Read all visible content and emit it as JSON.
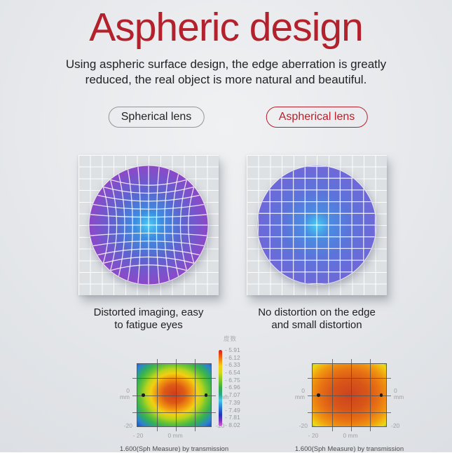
{
  "title": "Aspheric design",
  "subtitle_lines": [
    "Using aspheric surface design, the edge aberration is greatly",
    "reduced, the real object is more natural and beautiful."
  ],
  "badges": {
    "spherical": "Spherical lens",
    "aspherical": "Aspherical lens"
  },
  "lens_captions": {
    "spherical": [
      "Distorted imaging, easy",
      "to fatigue eyes"
    ],
    "aspherical": [
      "No distortion on the edge",
      "and small distortion"
    ]
  },
  "lenses": {
    "spherical": {
      "grid": "distorted pincushion grid",
      "center": "#49ccf5",
      "inner": "#3b8ee2",
      "mid": "#5a66d0",
      "edge": "#8d48c8"
    },
    "aspherical": {
      "grid": "regular undistorted grid",
      "center": "#44ccf2",
      "inner": "#4a8ce2",
      "mid": "#5b74da",
      "edge": "#6f68d8"
    }
  },
  "colors": {
    "accent_red": "#b3212d",
    "badge_border_gray": "#94969a",
    "text_dark": "#1f1f21",
    "axis_gray": "#9fa1a4",
    "background": "#e7e9ec"
  },
  "legend": {
    "title": "度数",
    "values": [
      "- 5.91",
      "- 6.12",
      "- 6.33",
      "- 6.54",
      "- 6.75",
      "- 6.96",
      "- 7.07",
      "- 7.39",
      "- 7.49",
      "- 7.81",
      "- 8.02"
    ],
    "bar_stops": [
      [
        "#d81b1a",
        0
      ],
      [
        "#ee6e10",
        10
      ],
      [
        "#f4cf10",
        21
      ],
      [
        "#d2da16",
        30
      ],
      [
        "#7cc62c",
        40
      ],
      [
        "#35ac48",
        50
      ],
      [
        "#2ba385",
        58
      ],
      [
        "#47c6e2",
        66
      ],
      [
        "#2b7fd8",
        75
      ],
      [
        "#2336b4",
        85
      ],
      [
        "#8032c0",
        93
      ],
      [
        "#da66d2",
        100
      ]
    ]
  },
  "chart_data": [
    {
      "type": "heatmap",
      "lens": "Spherical lens",
      "caption": "1.600(Sph Measure) by transmission",
      "x_range_mm": [
        -20,
        20
      ],
      "y_range_mm": [
        -20,
        20
      ],
      "value_range": [
        -5.91,
        -8.02
      ],
      "pattern": "radial power map: red center through orange, yellow, green rings to blue corners (strong edge power change)",
      "center_y": "48%",
      "color_stops": [
        [
          "#d23b1e",
          0
        ],
        [
          "#dd5a16",
          20
        ],
        [
          "#f09010",
          33
        ],
        [
          "#f3cf12",
          45
        ],
        [
          "#b8d41c",
          55
        ],
        [
          "#6ec434",
          64
        ],
        [
          "#3cb44c",
          73
        ],
        [
          "#2ba084",
          81
        ],
        [
          "#2e7fd4",
          90
        ],
        [
          "#1d50bc",
          100
        ]
      ],
      "axis": {
        "side_zero": "0",
        "side_unit": "mm",
        "corner": "-20",
        "bottom_left": "- 20",
        "bottom_center": "0 mm"
      }
    },
    {
      "type": "heatmap",
      "lens": "Aspherical lens",
      "caption": "1.600(Sph Measure) by transmission",
      "x_range_mm": [
        -20,
        20
      ],
      "y_range_mm": [
        -20,
        20
      ],
      "value_range": [
        -5.91,
        -8.02
      ],
      "pattern": "radial power map: red-orange center, mostly orange surface, yellow edges, small green corners (small edge power change)",
      "center_y": "50%",
      "color_stops": [
        [
          "#cc4220",
          0
        ],
        [
          "#d85618",
          35
        ],
        [
          "#e87214",
          58
        ],
        [
          "#f09810",
          76
        ],
        [
          "#f0c110",
          88
        ],
        [
          "#e8da18",
          95
        ],
        [
          "#90c82c",
          100
        ]
      ],
      "axis": {
        "side_zero": "0",
        "side_unit": "mm",
        "corner": "-20",
        "bottom_left": "- 20",
        "bottom_center": "0 mm"
      }
    }
  ]
}
